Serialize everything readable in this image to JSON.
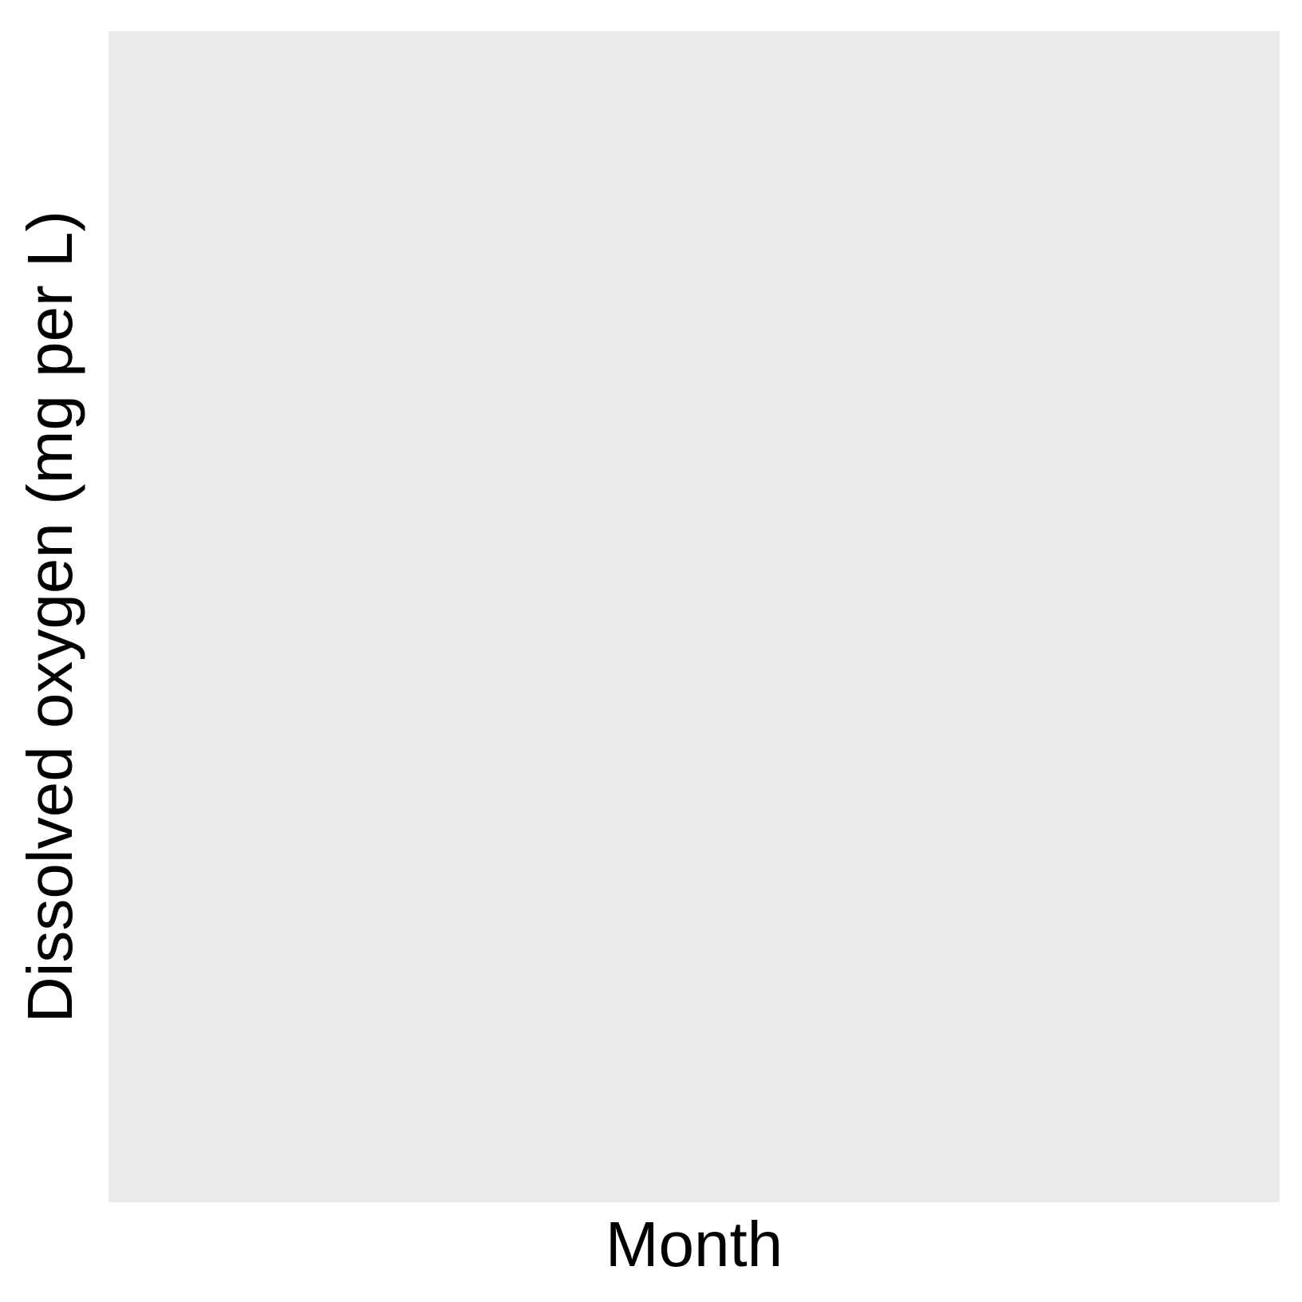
{
  "chart_data": {
    "type": "line",
    "title": "",
    "xlabel": "Month",
    "ylabel": "Dissolved oxygen (mg per L)",
    "series": [],
    "grid": false,
    "legend": "none",
    "colors": {
      "panel_background": "#ebebeb",
      "page_background": "#ffffff",
      "text": "#000000"
    }
  }
}
